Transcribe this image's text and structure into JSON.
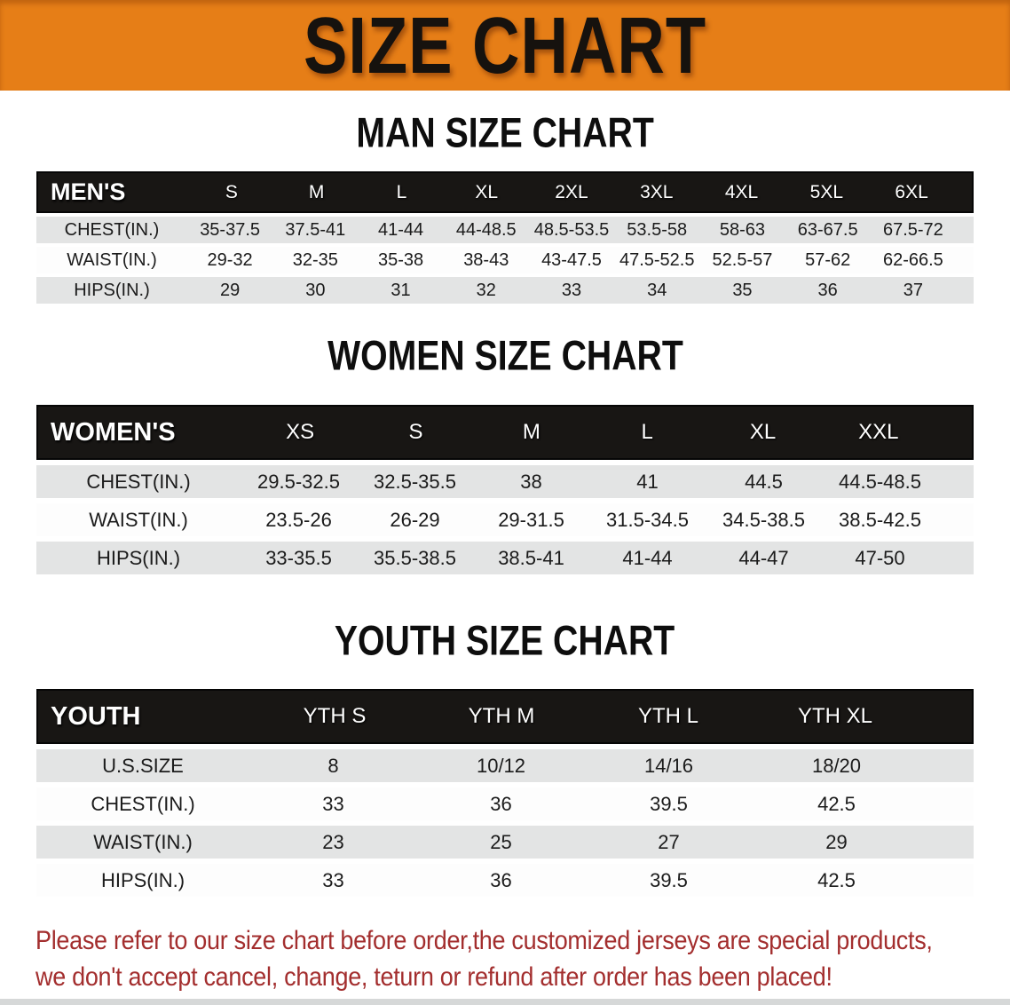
{
  "banner": {
    "title": "SIZE CHART"
  },
  "colors": {
    "banner_bg": "#e67e17",
    "table_header_bg": "#181614",
    "row_gray": "#e3e4e4",
    "footer_red": "#a32e2e"
  },
  "chart_data": [
    {
      "type": "table",
      "key": "men",
      "title": "MAN SIZE CHART",
      "corner": "MEN'S",
      "columns": [
        "S",
        "M",
        "L",
        "XL",
        "2XL",
        "3XL",
        "4XL",
        "5XL",
        "6XL"
      ],
      "rows": [
        {
          "label": "CHEST(IN.)",
          "values": [
            "35-37.5",
            "37.5-41",
            "41-44",
            "44-48.5",
            "48.5-53.5",
            "53.5-58",
            "58-63",
            "63-67.5",
            "67.5-72"
          ]
        },
        {
          "label": "WAIST(IN.)",
          "values": [
            "29-32",
            "32-35",
            "35-38",
            "38-43",
            "43-47.5",
            "47.5-52.5",
            "52.5-57",
            "57-62",
            "62-66.5"
          ]
        },
        {
          "label": "HIPS(IN.)",
          "values": [
            "29",
            "30",
            "31",
            "32",
            "33",
            "34",
            "35",
            "36",
            "37"
          ]
        }
      ]
    },
    {
      "type": "table",
      "key": "women",
      "title": "WOMEN SIZE CHART",
      "corner": "WOMEN'S",
      "columns": [
        "XS",
        "S",
        "M",
        "L",
        "XL",
        "XXL"
      ],
      "rows": [
        {
          "label": "CHEST(IN.)",
          "values": [
            "29.5-32.5",
            "32.5-35.5",
            "38",
            "41",
            "44.5",
            "44.5-48.5"
          ]
        },
        {
          "label": "WAIST(IN.)",
          "values": [
            "23.5-26",
            "26-29",
            "29-31.5",
            "31.5-34.5",
            "34.5-38.5",
            "38.5-42.5"
          ]
        },
        {
          "label": "HIPS(IN.)",
          "values": [
            "33-35.5",
            "35.5-38.5",
            "38.5-41",
            "41-44",
            "44-47",
            "47-50"
          ]
        }
      ]
    },
    {
      "type": "table",
      "key": "youth",
      "title": "YOUTH SIZE CHART",
      "corner": "YOUTH",
      "columns": [
        "YTH S",
        "YTH M",
        "YTH L",
        "YTH XL"
      ],
      "rows": [
        {
          "label": "U.S.SIZE",
          "values": [
            "8",
            "10/12",
            "14/16",
            "18/20"
          ]
        },
        {
          "label": "CHEST(IN.)",
          "values": [
            "33",
            "36",
            "39.5",
            "42.5"
          ]
        },
        {
          "label": "WAIST(IN.)",
          "values": [
            "23",
            "25",
            "27",
            "29"
          ]
        },
        {
          "label": "HIPS(IN.)",
          "values": [
            "33",
            "36",
            "39.5",
            "42.5"
          ]
        }
      ]
    }
  ],
  "footer": {
    "line1": "Please refer to our size chart before order,the customized jerseys are special products,",
    "line2": "we don't accept cancel, change, teturn or refund after order has been placed!"
  }
}
